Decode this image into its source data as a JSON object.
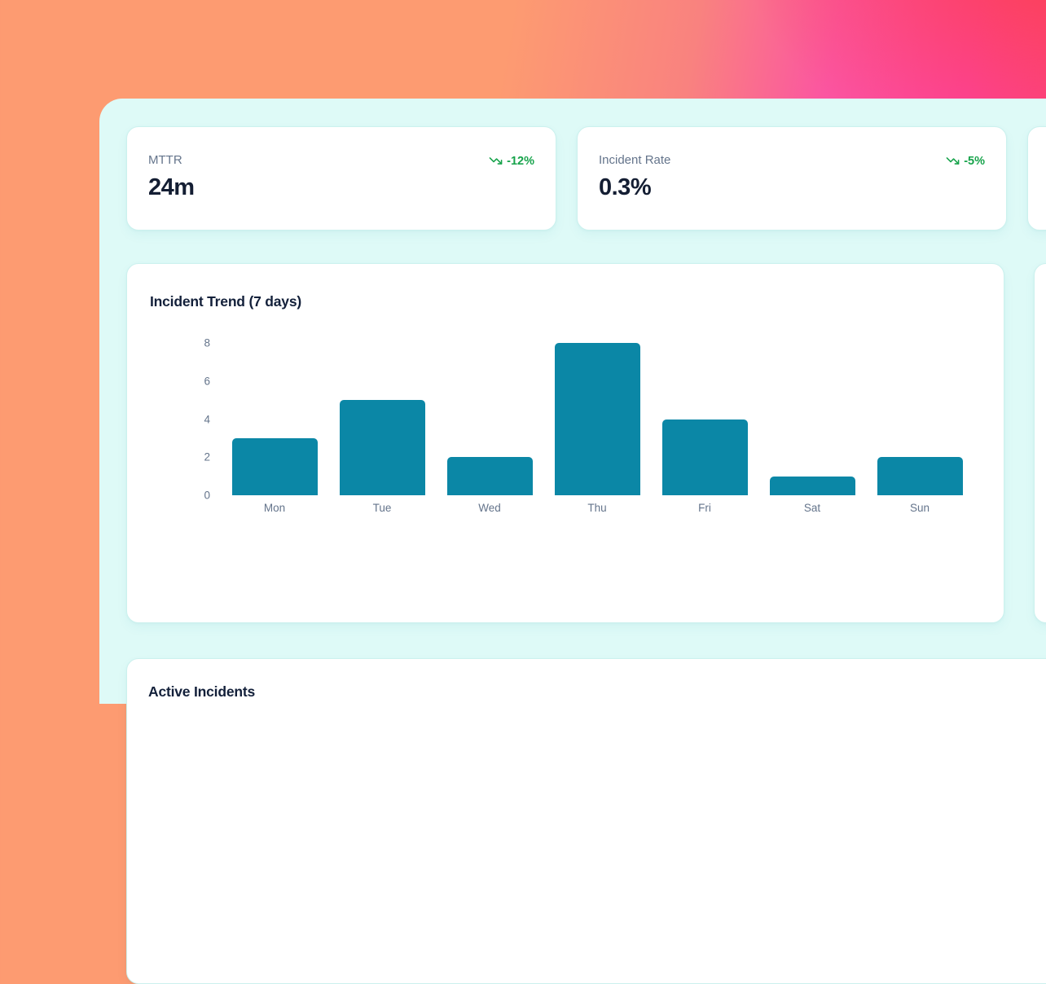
{
  "theme": {
    "bg_orange": "#fd9b71",
    "bg_pink": "#fc42a0",
    "bg_red": "#fc4150",
    "panel_bg": "#defaf7",
    "card_bg": "#ffffff",
    "card_border": "#ccf1ee",
    "bar_color": "#0b87a6",
    "trend_green": "#17a34b",
    "text_primary": "#141e33",
    "text_muted": "#64748b"
  },
  "kpi_cards": [
    {
      "label": "MTTR",
      "value": "24m",
      "trend": "-12%",
      "trend_icon": "trending-down-icon"
    },
    {
      "label": "Incident Rate",
      "value": "0.3%",
      "trend": "-5%",
      "trend_icon": "trending-down-icon"
    },
    {
      "label": "",
      "value": "",
      "trend": "",
      "trend_icon": ""
    }
  ],
  "chart_data": {
    "type": "bar",
    "title": "Incident Trend (7 days)",
    "categories": [
      "Mon",
      "Tue",
      "Wed",
      "Thu",
      "Fri",
      "Sat",
      "Sun"
    ],
    "values": [
      3,
      5,
      2,
      8,
      4,
      1,
      2
    ],
    "xlabel": "",
    "ylabel": "",
    "ylim": [
      0,
      8
    ],
    "yticks": [
      0,
      2,
      4,
      6,
      8
    ],
    "bar_color": "#0b87a6",
    "grid": false,
    "legend": false
  },
  "sections": {
    "active_incidents": {
      "title": "Active Incidents"
    }
  }
}
